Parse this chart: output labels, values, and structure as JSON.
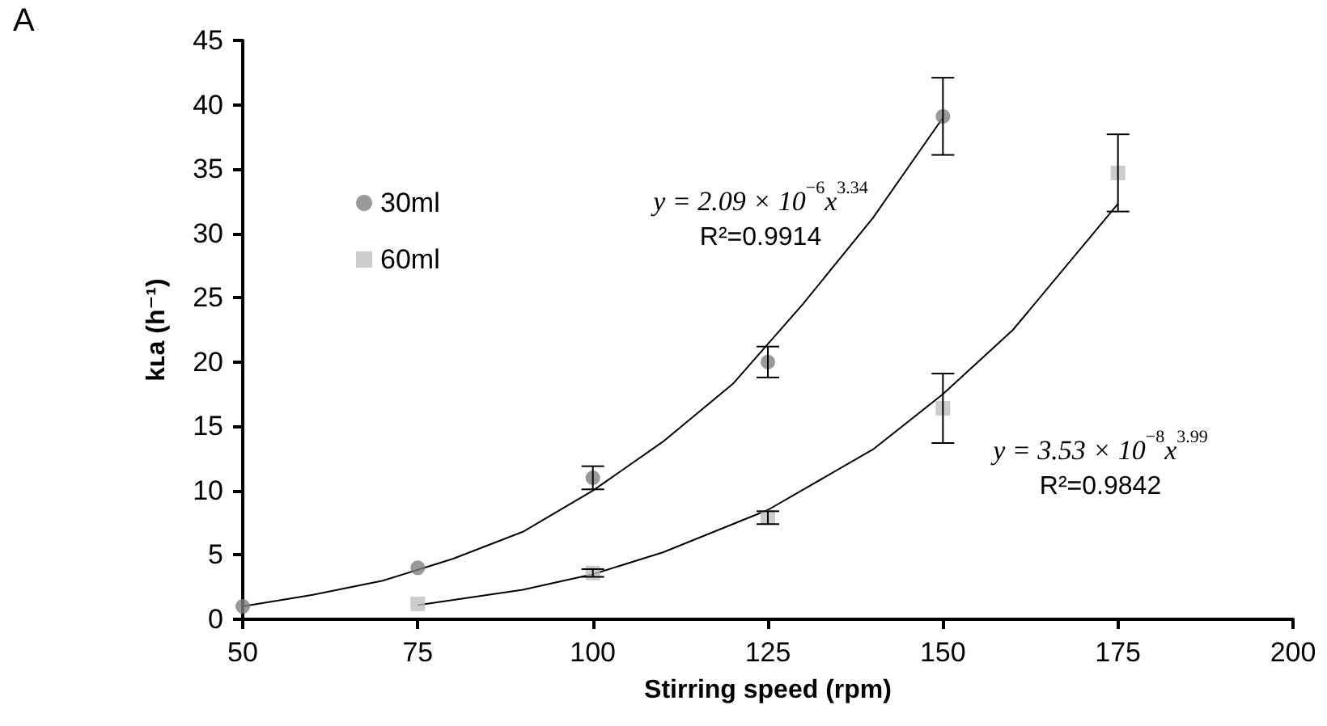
{
  "chart_data": {
    "type": "scatter",
    "xlabel": "Stirring speed (rpm)",
    "ylabel": "kʟa (h⁻¹)",
    "annotations": [
      "A",
      "y = 2.09 × 10$^{−6}$x$^{3.34}$",
      "R²=0.9914",
      "y = 3.53 × 10$^{−8}$x$^{3.99}$",
      "R²=0.9842"
    ],
    "xlim": [
      50,
      200
    ],
    "xticks": [
      50,
      75,
      100,
      125,
      150,
      175,
      200
    ],
    "ylim": [
      0,
      45
    ],
    "yticks": [
      0,
      5,
      10,
      15,
      20,
      25,
      30,
      35,
      40,
      45
    ],
    "grid": false,
    "legend": "top left",
    "series": [
      {
        "name": "30ml",
        "color": "#808080",
        "marker": "circle",
        "x": [
          50,
          75,
          100,
          125,
          150
        ],
        "values": [
          1.0,
          4.0,
          11.0,
          20.0,
          39.1
        ],
        "errors": [
          null,
          null,
          0.9,
          1.2,
          3.0
        ]
      },
      {
        "name": "60ml",
        "color": "#bfbfbf",
        "marker": "square",
        "x": [
          75,
          100,
          125,
          150,
          175
        ],
        "values": [
          1.2,
          3.6,
          7.9,
          16.4,
          34.7
        ],
        "errors": [
          null,
          0.3,
          0.5,
          2.7,
          3.0
        ]
      },
      {
        "type": "line",
        "color": "#000000",
        "marker": "none",
        "x": [
          50,
          60,
          70,
          80,
          90,
          100,
          110,
          120,
          130,
          140,
          150
        ],
        "values": [
          1.0,
          1.9,
          3.0,
          4.7,
          6.8,
          10.0,
          13.8,
          18.3,
          24.5,
          31.2,
          39.0
        ]
      },
      {
        "type": "line",
        "color": "#000000",
        "marker": "none",
        "x": [
          75,
          90,
          100,
          110,
          125,
          140,
          150,
          160,
          175
        ],
        "values": [
          1.1,
          2.3,
          3.5,
          5.2,
          8.5,
          13.2,
          17.5,
          22.5,
          32.3
        ]
      }
    ]
  }
}
